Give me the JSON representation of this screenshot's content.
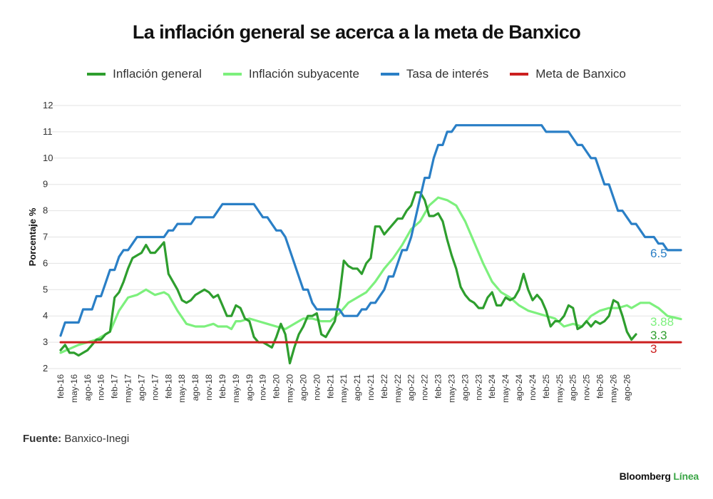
{
  "title": "La inflación general se acerca a la meta de Banxico",
  "source": {
    "label": "Fuente:",
    "text": "Banxico-Inegi"
  },
  "brand": {
    "name": "Bloomberg",
    "accent": "Línea"
  },
  "chart_data": {
    "type": "line",
    "ylabel": "Porcentaje %",
    "ylim": [
      2,
      12
    ],
    "yticks": [
      2,
      3,
      4,
      5,
      6,
      7,
      8,
      9,
      10,
      11,
      12
    ],
    "grid": "horizontal",
    "legend_position": "top-center",
    "xticks": [
      "feb-16",
      "may-16",
      "ago-16",
      "nov-16",
      "feb-17",
      "may-17",
      "ago-17",
      "nov-17",
      "feb-18",
      "may-18",
      "ago-18",
      "nov-18",
      "feb-19",
      "may-19",
      "ago-19",
      "nov-19",
      "feb-20",
      "may-20",
      "ago-20",
      "nov-20",
      "feb-21",
      "may-21",
      "ago-21",
      "nov-21",
      "feb-22",
      "may-22",
      "ago-22",
      "nov-22",
      "feb-23",
      "may-23",
      "ago-23",
      "nov-23",
      "feb-24",
      "may-24",
      "ago-24",
      "nov-24",
      "feb-25",
      "may-25",
      "ago-25",
      "nov-25",
      "feb-26",
      "may-26",
      "ago-26"
    ],
    "series": [
      {
        "name": "Inflación general",
        "color": "#2e9e2e",
        "end_label": "3.3",
        "points": [
          [
            0,
            2.7
          ],
          [
            1,
            2.9
          ],
          [
            2,
            2.6
          ],
          [
            3,
            2.6
          ],
          [
            4,
            2.5
          ],
          [
            5,
            2.6
          ],
          [
            6,
            2.7
          ],
          [
            7,
            2.9
          ],
          [
            8,
            3.1
          ],
          [
            9,
            3.1
          ],
          [
            10,
            3.3
          ],
          [
            11,
            3.4
          ],
          [
            12,
            4.7
          ],
          [
            13,
            4.9
          ],
          [
            14,
            5.3
          ],
          [
            15,
            5.8
          ],
          [
            16,
            6.2
          ],
          [
            17,
            6.3
          ],
          [
            18,
            6.4
          ],
          [
            19,
            6.7
          ],
          [
            20,
            6.4
          ],
          [
            21,
            6.4
          ],
          [
            22,
            6.6
          ],
          [
            23,
            6.8
          ],
          [
            24,
            5.6
          ],
          [
            25,
            5.3
          ],
          [
            26,
            5.0
          ],
          [
            27,
            4.6
          ],
          [
            28,
            4.5
          ],
          [
            29,
            4.6
          ],
          [
            30,
            4.8
          ],
          [
            31,
            4.9
          ],
          [
            32,
            5.0
          ],
          [
            33,
            4.9
          ],
          [
            34,
            4.7
          ],
          [
            35,
            4.8
          ],
          [
            36,
            4.4
          ],
          [
            37,
            4.0
          ],
          [
            38,
            4.0
          ],
          [
            39,
            4.4
          ],
          [
            40,
            4.3
          ],
          [
            41,
            3.9
          ],
          [
            42,
            3.8
          ],
          [
            43,
            3.2
          ],
          [
            44,
            3.0
          ],
          [
            45,
            3.0
          ],
          [
            46,
            2.9
          ],
          [
            47,
            2.8
          ],
          [
            48,
            3.2
          ],
          [
            49,
            3.7
          ],
          [
            50,
            3.3
          ],
          [
            51,
            2.2
          ],
          [
            52,
            2.8
          ],
          [
            53,
            3.3
          ],
          [
            54,
            3.6
          ],
          [
            55,
            4.0
          ],
          [
            56,
            4.0
          ],
          [
            57,
            4.1
          ],
          [
            58,
            3.3
          ],
          [
            59,
            3.2
          ],
          [
            60,
            3.5
          ],
          [
            61,
            3.8
          ],
          [
            62,
            4.7
          ],
          [
            63,
            6.1
          ],
          [
            64,
            5.9
          ],
          [
            65,
            5.8
          ],
          [
            66,
            5.8
          ],
          [
            67,
            5.6
          ],
          [
            68,
            6.0
          ],
          [
            69,
            6.2
          ],
          [
            70,
            7.4
          ],
          [
            71,
            7.4
          ],
          [
            72,
            7.1
          ],
          [
            73,
            7.3
          ],
          [
            74,
            7.5
          ],
          [
            75,
            7.7
          ],
          [
            76,
            7.7
          ],
          [
            77,
            8.0
          ],
          [
            78,
            8.2
          ],
          [
            79,
            8.7
          ],
          [
            80,
            8.7
          ],
          [
            81,
            8.4
          ],
          [
            82,
            7.8
          ],
          [
            83,
            7.8
          ],
          [
            84,
            7.9
          ],
          [
            85,
            7.6
          ],
          [
            86,
            6.9
          ],
          [
            87,
            6.3
          ],
          [
            88,
            5.8
          ],
          [
            89,
            5.1
          ],
          [
            90,
            4.8
          ],
          [
            91,
            4.6
          ],
          [
            92,
            4.5
          ],
          [
            93,
            4.3
          ],
          [
            94,
            4.3
          ],
          [
            95,
            4.7
          ],
          [
            96,
            4.9
          ],
          [
            97,
            4.4
          ],
          [
            98,
            4.4
          ],
          [
            99,
            4.7
          ],
          [
            100,
            4.6
          ],
          [
            101,
            4.7
          ],
          [
            102,
            5.0
          ],
          [
            103,
            5.6
          ],
          [
            104,
            5.0
          ],
          [
            105,
            4.6
          ],
          [
            106,
            4.8
          ],
          [
            107,
            4.6
          ],
          [
            108,
            4.2
          ],
          [
            109,
            3.6
          ],
          [
            110,
            3.8
          ],
          [
            111,
            3.8
          ],
          [
            112,
            4.0
          ],
          [
            113,
            4.4
          ],
          [
            114,
            4.3
          ],
          [
            115,
            3.5
          ],
          [
            116,
            3.6
          ],
          [
            117,
            3.8
          ],
          [
            118,
            3.6
          ],
          [
            119,
            3.8
          ],
          [
            120,
            3.7
          ],
          [
            121,
            3.8
          ],
          [
            122,
            4.0
          ],
          [
            123,
            4.6
          ],
          [
            124,
            4.5
          ],
          [
            125,
            4.0
          ],
          [
            126,
            3.4
          ],
          [
            127,
            3.1
          ],
          [
            128,
            3.3
          ]
        ]
      },
      {
        "name": "Inflación subyacente",
        "color": "#7df07d",
        "end_label": "3.88",
        "points": [
          [
            0,
            2.6
          ],
          [
            4,
            2.9
          ],
          [
            8,
            3.1
          ],
          [
            11,
            3.4
          ],
          [
            13,
            4.2
          ],
          [
            15,
            4.7
          ],
          [
            17,
            4.8
          ],
          [
            19,
            5.0
          ],
          [
            20,
            4.9
          ],
          [
            21,
            4.8
          ],
          [
            23,
            4.9
          ],
          [
            24,
            4.8
          ],
          [
            26,
            4.2
          ],
          [
            28,
            3.7
          ],
          [
            30,
            3.6
          ],
          [
            32,
            3.6
          ],
          [
            34,
            3.7
          ],
          [
            35,
            3.6
          ],
          [
            37,
            3.6
          ],
          [
            38,
            3.5
          ],
          [
            39,
            3.8
          ],
          [
            40,
            3.8
          ],
          [
            42,
            3.9
          ],
          [
            44,
            3.8
          ],
          [
            46,
            3.7
          ],
          [
            48,
            3.6
          ],
          [
            50,
            3.5
          ],
          [
            52,
            3.7
          ],
          [
            54,
            3.9
          ],
          [
            56,
            3.9
          ],
          [
            58,
            3.8
          ],
          [
            60,
            3.8
          ],
          [
            62,
            4.1
          ],
          [
            64,
            4.5
          ],
          [
            66,
            4.7
          ],
          [
            68,
            4.9
          ],
          [
            70,
            5.3
          ],
          [
            72,
            5.8
          ],
          [
            74,
            6.2
          ],
          [
            76,
            6.7
          ],
          [
            78,
            7.3
          ],
          [
            80,
            7.6
          ],
          [
            82,
            8.2
          ],
          [
            84,
            8.5
          ],
          [
            86,
            8.4
          ],
          [
            88,
            8.2
          ],
          [
            90,
            7.6
          ],
          [
            92,
            6.8
          ],
          [
            94,
            6.0
          ],
          [
            96,
            5.3
          ],
          [
            98,
            4.9
          ],
          [
            100,
            4.7
          ],
          [
            102,
            4.4
          ],
          [
            104,
            4.2
          ],
          [
            106,
            4.1
          ],
          [
            108,
            4.0
          ],
          [
            110,
            3.9
          ],
          [
            112,
            3.6
          ],
          [
            114,
            3.7
          ],
          [
            116,
            3.6
          ],
          [
            118,
            4.0
          ],
          [
            120,
            4.2
          ],
          [
            122,
            4.3
          ],
          [
            124,
            4.3
          ],
          [
            126,
            4.4
          ],
          [
            127,
            4.3
          ],
          [
            129,
            4.5
          ],
          [
            131,
            4.5
          ],
          [
            133,
            4.3
          ],
          [
            135,
            4.0
          ],
          [
            138,
            3.88
          ]
        ]
      },
      {
        "name": "Tasa de interés",
        "color": "#2a7fc6",
        "end_label": "6.5",
        "points": [
          [
            0,
            3.25
          ],
          [
            1,
            3.75
          ],
          [
            4,
            3.75
          ],
          [
            5,
            4.25
          ],
          [
            7,
            4.25
          ],
          [
            8,
            4.75
          ],
          [
            9,
            4.75
          ],
          [
            10,
            5.25
          ],
          [
            11,
            5.75
          ],
          [
            12,
            5.75
          ],
          [
            13,
            6.25
          ],
          [
            14,
            6.5
          ],
          [
            15,
            6.5
          ],
          [
            16,
            6.75
          ],
          [
            17,
            7.0
          ],
          [
            23,
            7.0
          ],
          [
            24,
            7.25
          ],
          [
            25,
            7.25
          ],
          [
            26,
            7.5
          ],
          [
            29,
            7.5
          ],
          [
            30,
            7.75
          ],
          [
            34,
            7.75
          ],
          [
            35,
            8.0
          ],
          [
            36,
            8.25
          ],
          [
            43,
            8.25
          ],
          [
            44,
            8.0
          ],
          [
            45,
            7.75
          ],
          [
            46,
            7.75
          ],
          [
            47,
            7.5
          ],
          [
            48,
            7.25
          ],
          [
            49,
            7.25
          ],
          [
            50,
            7.0
          ],
          [
            51,
            6.5
          ],
          [
            52,
            6.0
          ],
          [
            53,
            5.5
          ],
          [
            54,
            5.0
          ],
          [
            55,
            5.0
          ],
          [
            56,
            4.5
          ],
          [
            57,
            4.25
          ],
          [
            62,
            4.25
          ],
          [
            63,
            4.0
          ],
          [
            66,
            4.0
          ],
          [
            67,
            4.25
          ],
          [
            68,
            4.25
          ],
          [
            69,
            4.5
          ],
          [
            70,
            4.5
          ],
          [
            71,
            4.75
          ],
          [
            72,
            5.0
          ],
          [
            73,
            5.5
          ],
          [
            74,
            5.5
          ],
          [
            75,
            6.0
          ],
          [
            76,
            6.5
          ],
          [
            77,
            6.5
          ],
          [
            78,
            7.0
          ],
          [
            79,
            7.75
          ],
          [
            80,
            8.5
          ],
          [
            81,
            9.25
          ],
          [
            82,
            9.25
          ],
          [
            83,
            10.0
          ],
          [
            84,
            10.5
          ],
          [
            85,
            10.5
          ],
          [
            86,
            11.0
          ],
          [
            87,
            11.0
          ],
          [
            88,
            11.25
          ],
          [
            107,
            11.25
          ],
          [
            108,
            11.0
          ],
          [
            113,
            11.0
          ],
          [
            114,
            10.75
          ],
          [
            115,
            10.5
          ],
          [
            116,
            10.5
          ],
          [
            117,
            10.25
          ],
          [
            118,
            10.0
          ],
          [
            119,
            10.0
          ],
          [
            120,
            9.5
          ],
          [
            121,
            9.0
          ],
          [
            122,
            9.0
          ],
          [
            123,
            8.5
          ],
          [
            124,
            8.0
          ],
          [
            125,
            8.0
          ],
          [
            126,
            7.75
          ],
          [
            127,
            7.5
          ],
          [
            128,
            7.5
          ],
          [
            129,
            7.25
          ],
          [
            130,
            7.0
          ],
          [
            132,
            7.0
          ],
          [
            133,
            6.75
          ],
          [
            134,
            6.75
          ],
          [
            135,
            6.5
          ],
          [
            138,
            6.5
          ]
        ]
      },
      {
        "name": "Meta de Banxico",
        "color": "#cc1f1f",
        "end_label": "3",
        "points": [
          [
            0,
            3.0
          ],
          [
            138,
            3.0
          ]
        ]
      }
    ]
  }
}
